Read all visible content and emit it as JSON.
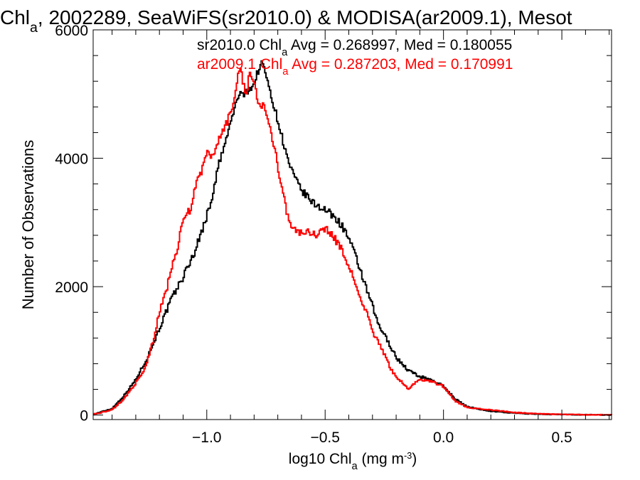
{
  "chart_data": {
    "type": "line",
    "title_parts": [
      "Chl",
      "a",
      ", 2002289, SeaWiFS(sr2010.0) & MODISA(ar2009.1), Mesot"
    ],
    "xlabel_parts": [
      "log10 Chl",
      "a",
      " (mg m",
      "-3",
      ")"
    ],
    "ylabel": "Number of Observations",
    "xlim": [
      -1.48,
      0.71
    ],
    "ylim": [
      -70,
      6000
    ],
    "x_ticks": [
      {
        "value": -1.0,
        "label": "−1.0"
      },
      {
        "value": -0.5,
        "label": "−0.5"
      },
      {
        "value": 0.0,
        "label": "0.0"
      },
      {
        "value": 0.5,
        "label": "0.5"
      }
    ],
    "y_ticks": [
      {
        "value": 0,
        "label": "0"
      },
      {
        "value": 2000,
        "label": "2000"
      },
      {
        "value": 4000,
        "label": "4000"
      },
      {
        "value": 6000,
        "label": "6000"
      }
    ],
    "x_minor_step": 0.1,
    "y_minor_step": 400,
    "legend": [
      {
        "parts": [
          "sr2010.0 Chl",
          "a",
          " Avg = 0.268997, Med = 0.180055"
        ],
        "color": "#000000"
      },
      {
        "parts": [
          "ar2009.1 Chl",
          "a",
          " Avg = 0.287203, Med = 0.170991"
        ],
        "color": "#ff0000"
      }
    ],
    "series": [
      {
        "color": "#000000",
        "x": [
          -1.48,
          -1.4,
          -1.35,
          -1.3,
          -1.25,
          -1.2,
          -1.15,
          -1.1,
          -1.05,
          -1.0,
          -0.97,
          -0.95,
          -0.92,
          -0.9,
          -0.88,
          -0.86,
          -0.85,
          -0.83,
          -0.8,
          -0.78,
          -0.76,
          -0.75,
          -0.73,
          -0.72,
          -0.7,
          -0.68,
          -0.66,
          -0.63,
          -0.6,
          -0.55,
          -0.5,
          -0.45,
          -0.42,
          -0.4,
          -0.38,
          -0.35,
          -0.33,
          -0.3,
          -0.28,
          -0.25,
          -0.22,
          -0.2,
          -0.15,
          -0.1,
          -0.05,
          0.0,
          0.05,
          0.1,
          0.2,
          0.3,
          0.4,
          0.5,
          0.6,
          0.71
        ],
        "values": [
          10,
          100,
          300,
          550,
          900,
          1350,
          1800,
          2150,
          2550,
          3100,
          3500,
          3900,
          4250,
          4550,
          4800,
          5050,
          4950,
          5050,
          5150,
          5400,
          5500,
          5250,
          5050,
          4850,
          4600,
          4300,
          4000,
          3700,
          3500,
          3300,
          3200,
          3050,
          2900,
          2750,
          2550,
          2250,
          2000,
          1700,
          1450,
          1250,
          1050,
          900,
          700,
          600,
          550,
          450,
          250,
          130,
          60,
          30,
          15,
          8,
          5,
          3
        ]
      },
      {
        "color": "#ff0000",
        "x": [
          -1.48,
          -1.4,
          -1.35,
          -1.3,
          -1.27,
          -1.25,
          -1.22,
          -1.2,
          -1.17,
          -1.15,
          -1.12,
          -1.1,
          -1.07,
          -1.05,
          -1.02,
          -1.0,
          -0.97,
          -0.95,
          -0.92,
          -0.9,
          -0.88,
          -0.87,
          -0.86,
          -0.85,
          -0.84,
          -0.83,
          -0.82,
          -0.8,
          -0.78,
          -0.76,
          -0.75,
          -0.73,
          -0.71,
          -0.69,
          -0.67,
          -0.65,
          -0.62,
          -0.6,
          -0.57,
          -0.55,
          -0.52,
          -0.5,
          -0.47,
          -0.45,
          -0.42,
          -0.4,
          -0.37,
          -0.35,
          -0.32,
          -0.3,
          -0.27,
          -0.25,
          -0.22,
          -0.2,
          -0.17,
          -0.15,
          -0.1,
          -0.05,
          0.0,
          0.05,
          0.1,
          0.2,
          0.3,
          0.4,
          0.5,
          0.6,
          0.71
        ],
        "values": [
          10,
          80,
          250,
          500,
          650,
          850,
          1250,
          1600,
          1950,
          2300,
          2650,
          3050,
          3200,
          3550,
          3800,
          4100,
          4000,
          4300,
          4500,
          4700,
          4950,
          5300,
          5450,
          5250,
          5100,
          4950,
          5400,
          5150,
          4850,
          4800,
          4750,
          4450,
          4100,
          3650,
          3300,
          3000,
          2850,
          2850,
          2850,
          2800,
          2850,
          2900,
          2800,
          2700,
          2500,
          2300,
          2050,
          1800,
          1550,
          1300,
          1100,
          950,
          700,
          600,
          500,
          400,
          560,
          520,
          450,
          220,
          120,
          80,
          40,
          20,
          10,
          6,
          3
        ]
      }
    ]
  }
}
